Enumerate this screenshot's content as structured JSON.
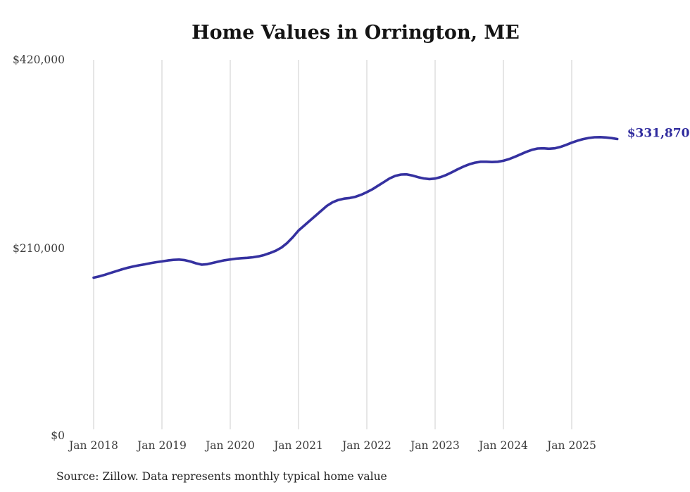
{
  "page": {
    "title": "Home Values in Orrington, ME",
    "source_note": "Source: Zillow. Data represents monthly typical home value",
    "end_label": "$331,870"
  },
  "colors": {
    "line": "#3531a0",
    "end_label": "#2e2a9d",
    "grid": "#cccccc",
    "axis_text": "#3c3c3c",
    "title_text": "#141414",
    "background": "#ffffff"
  },
  "chart_data": {
    "type": "line",
    "title": "Home Values in Orrington, ME",
    "xlabel": "",
    "ylabel": "",
    "ylim": [
      0,
      420000
    ],
    "y_ticks": [
      0,
      210000,
      420000
    ],
    "y_tick_labels": [
      "$0",
      "$210,000",
      "$420,000"
    ],
    "x_tick_labels": [
      "Jan 2018",
      "Jan 2019",
      "Jan 2020",
      "Jan 2021",
      "Jan 2022",
      "Jan 2023",
      "Jan 2024",
      "Jan 2025"
    ],
    "grid": "vertical-only",
    "legend": "none",
    "last_value": 331870,
    "last_value_label": "$331,870",
    "source": "Source: Zillow. Data represents monthly typical home value",
    "x": [
      "2018-01",
      "2018-02",
      "2018-03",
      "2018-04",
      "2018-05",
      "2018-06",
      "2018-07",
      "2018-08",
      "2018-09",
      "2018-10",
      "2018-11",
      "2018-12",
      "2019-01",
      "2019-02",
      "2019-03",
      "2019-04",
      "2019-05",
      "2019-06",
      "2019-07",
      "2019-08",
      "2019-09",
      "2019-10",
      "2019-11",
      "2019-12",
      "2020-01",
      "2020-02",
      "2020-03",
      "2020-04",
      "2020-05",
      "2020-06",
      "2020-07",
      "2020-08",
      "2020-09",
      "2020-10",
      "2020-11",
      "2020-12",
      "2021-01",
      "2021-02",
      "2021-03",
      "2021-04",
      "2021-05",
      "2021-06",
      "2021-07",
      "2021-08",
      "2021-09",
      "2021-10",
      "2021-11",
      "2021-12",
      "2022-01",
      "2022-02",
      "2022-03",
      "2022-04",
      "2022-05",
      "2022-06",
      "2022-07",
      "2022-08",
      "2022-09",
      "2022-10",
      "2022-11",
      "2022-12",
      "2023-01",
      "2023-02",
      "2023-03",
      "2023-04",
      "2023-05",
      "2023-06",
      "2023-07",
      "2023-08",
      "2023-09",
      "2023-10",
      "2023-11",
      "2023-12",
      "2024-01",
      "2024-02",
      "2024-03",
      "2024-04",
      "2024-05",
      "2024-06",
      "2024-07",
      "2024-08",
      "2024-09",
      "2024-10",
      "2024-11",
      "2024-12",
      "2025-01",
      "2025-02",
      "2025-03",
      "2025-04",
      "2025-05",
      "2025-06",
      "2025-07",
      "2025-08",
      "2025-09"
    ],
    "values": [
      177500,
      179000,
      180800,
      182800,
      184800,
      186800,
      188500,
      190000,
      191300,
      192400,
      193600,
      194700,
      195600,
      196600,
      197300,
      197600,
      197000,
      195500,
      193500,
      192000,
      192500,
      194000,
      195500,
      196800,
      197800,
      198600,
      199200,
      199600,
      200200,
      201200,
      202800,
      205000,
      207500,
      211000,
      216000,
      222500,
      230000,
      235500,
      241000,
      246500,
      252000,
      257500,
      261500,
      264000,
      265500,
      266200,
      267500,
      269800,
      272700,
      276000,
      280000,
      284000,
      288000,
      290800,
      292300,
      292500,
      291200,
      289400,
      288000,
      287300,
      287800,
      289500,
      292000,
      295000,
      298200,
      301200,
      303700,
      305500,
      306500,
      306500,
      306200,
      306500,
      307600,
      309500,
      312000,
      314800,
      317500,
      319800,
      321300,
      321500,
      321000,
      321500,
      323000,
      325300,
      327800,
      330000,
      331800,
      333000,
      333800,
      334000,
      333600,
      332900,
      331870
    ]
  }
}
